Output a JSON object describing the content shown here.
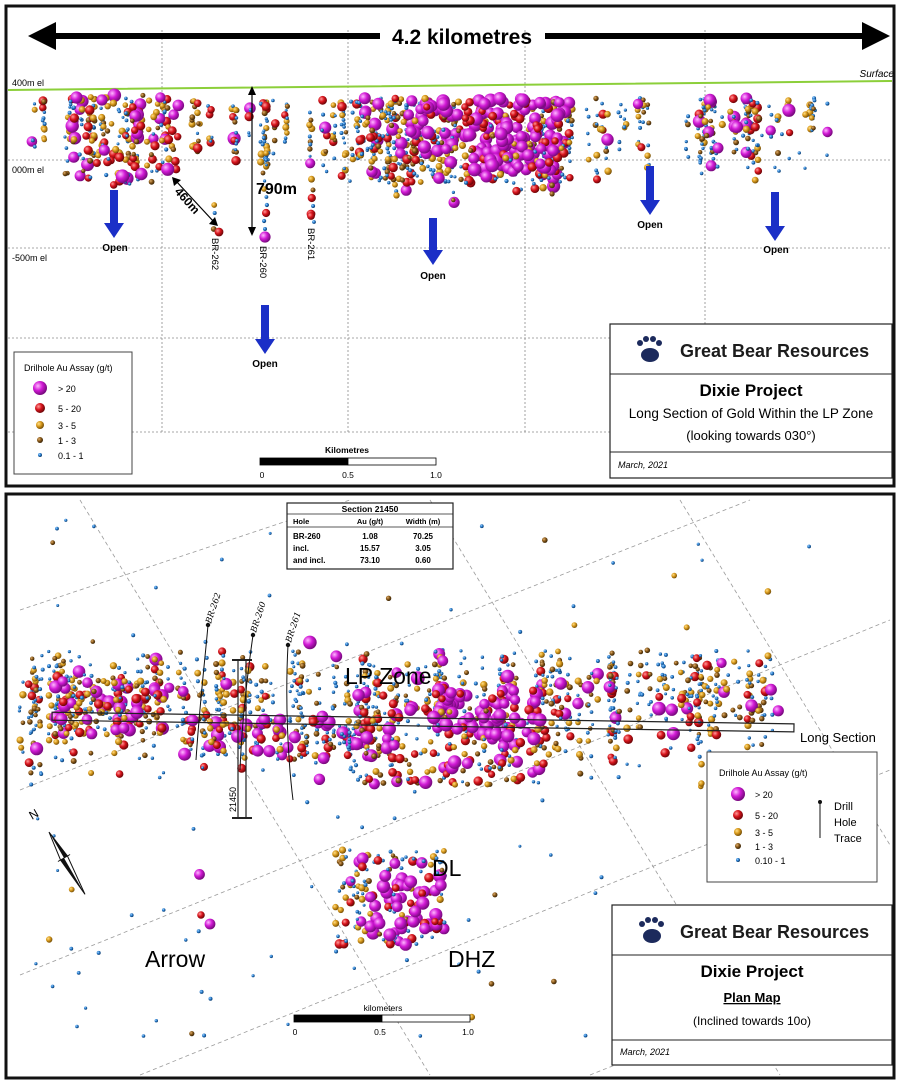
{
  "long_section": {
    "span_label": "4.2 kilometres",
    "surface_label": "Surface",
    "elevations": [
      "400m el",
      "000m el",
      "-500m el"
    ],
    "dims": [
      "790m",
      "460m"
    ],
    "open_labels": [
      "Open",
      "Open",
      "Open",
      "Open",
      "Open"
    ],
    "holes": [
      "BR-262",
      "BR-260",
      "BR-261"
    ],
    "legend": {
      "title": "Drilhole Au Assay (g/t)",
      "items": [
        "> 20",
        "5 - 20",
        "3 - 5",
        "1 - 3",
        "0.1 - 1"
      ]
    },
    "scale": {
      "title": "Kilometres",
      "ticks": [
        "0",
        "0.5",
        "1.0"
      ]
    },
    "title_block": {
      "company": "Great Bear Resources",
      "project": "Dixie Project",
      "subtitle": "Long Section of Gold Within the LP Zone",
      "note": "(looking towards 030°)",
      "date": "March, 2021"
    }
  },
  "plan_map": {
    "section_table": {
      "title": "Section 21450",
      "headers": [
        "Hole",
        "Au (g/t)",
        "Width (m)"
      ],
      "rows": [
        [
          "BR-260",
          "1.08",
          "70.25"
        ],
        [
          "incl.",
          "15.57",
          "3.05"
        ],
        [
          "and incl.",
          "73.10",
          "0.60"
        ]
      ]
    },
    "holes": [
      "BR-262",
      "BR-260",
      "BR-261"
    ],
    "section_label": "21450",
    "zones": [
      "LP Zone",
      "DL",
      "Arrow",
      "DHZ"
    ],
    "long_section_label": "Long Section",
    "north_label": "N",
    "legend": {
      "title": "Drilhole Au Assay (g/t)",
      "items": [
        "> 20",
        "5 - 20",
        "3 - 5",
        "1 - 3",
        "0.10 - 1"
      ],
      "trace_label": [
        "Drill",
        "Hole",
        "Trace"
      ]
    },
    "scale": {
      "title": "kilometers",
      "ticks": [
        "0",
        "0.5",
        "1.0"
      ]
    },
    "title_block": {
      "company": "Great Bear Resources",
      "project": "Dixie Project",
      "subtitle": "Plan Map",
      "note": "(Inclined towards 10o)",
      "date": "March, 2021"
    }
  },
  "colors": {
    "gt20": "#d21ad6",
    "r5_20": "#d8141c",
    "r3_5": "#d99a1c",
    "r1_3": "#8a5a1a",
    "r01_1": "#2a7fd0",
    "arrow_blue": "#1b2fc7",
    "surface": "#8ccf3a"
  }
}
